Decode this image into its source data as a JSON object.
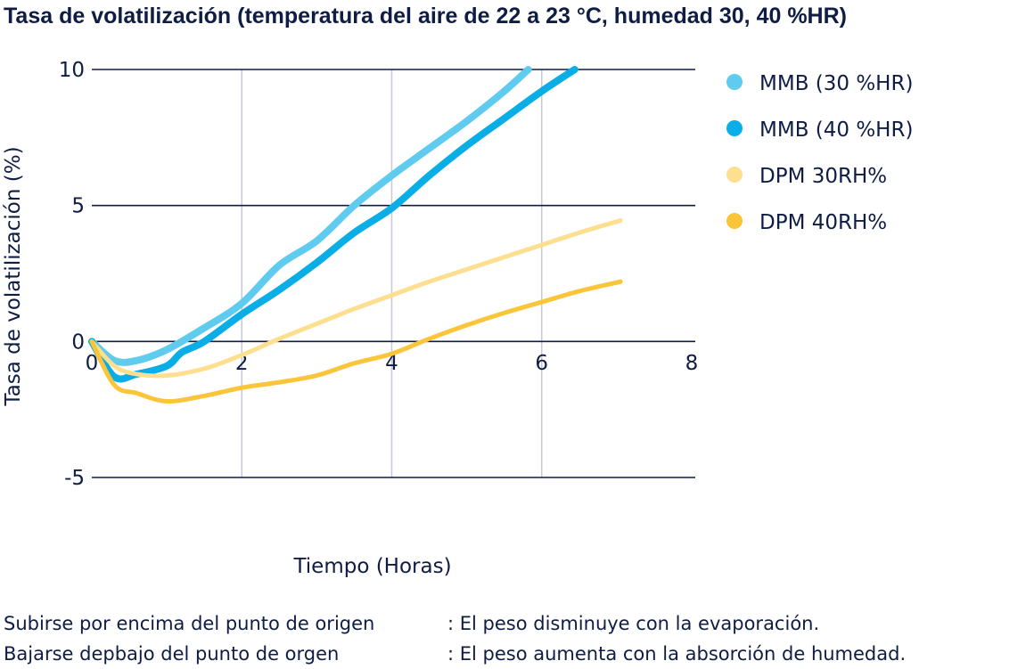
{
  "chart_data": {
    "type": "line",
    "title": "Tasa de volatilización (temperatura del aire de 22 a 23 °C, humedad 30, 40 %HR)",
    "xlabel": "Tiempo (Horas)",
    "ylabel": "Tasa de volatilización (%)",
    "xlim": [
      0,
      8
    ],
    "ylim": [
      -5,
      10
    ],
    "xticks": [
      "0",
      "2",
      "4",
      "6",
      "8"
    ],
    "yticks": [
      "10",
      "5",
      "0",
      "-5"
    ],
    "xtick_values": [
      0,
      2,
      4,
      6,
      8
    ],
    "ytick_values": [
      10,
      5,
      0,
      -5
    ],
    "grid": true,
    "legend_placement": "right",
    "series": [
      {
        "name": " MMB (30 %HR)",
        "color": "#5fcbef",
        "x": [
          0,
          0.3,
          0.6,
          1,
          1.5,
          2,
          2.5,
          3,
          3.5,
          4,
          4.5,
          5,
          5.5,
          5.82
        ],
        "y": [
          0,
          -0.7,
          -0.7,
          -0.3,
          0.5,
          1.4,
          2.8,
          3.7,
          5.0,
          6.1,
          7.1,
          8.1,
          9.2,
          10
        ]
      },
      {
        "name": "MMB (40 %HR)",
        "color": "#0aaee6",
        "x": [
          0,
          0.3,
          0.6,
          1,
          1.2,
          1.5,
          2,
          2.5,
          3,
          3.5,
          4,
          4.5,
          5,
          5.5,
          6,
          6.44
        ],
        "y": [
          0,
          -1.3,
          -1.2,
          -0.9,
          -0.4,
          0,
          1.0,
          1.9,
          2.9,
          4.0,
          4.9,
          6.1,
          7.2,
          8.2,
          9.2,
          10
        ]
      },
      {
        "name": "DPM 30RH%",
        "color": "#fddf8f",
        "x": [
          0,
          0.3,
          0.6,
          1,
          1.5,
          2,
          2.5,
          3,
          3.5,
          4,
          4.5,
          5,
          5.5,
          6,
          6.5,
          7.05
        ],
        "y": [
          0,
          -0.9,
          -1.2,
          -1.25,
          -1.0,
          -0.5,
          0.1,
          0.65,
          1.2,
          1.7,
          2.2,
          2.65,
          3.1,
          3.55,
          4.0,
          4.45
        ]
      },
      {
        "name": "DPM 40RH%",
        "color": "#fbc53a",
        "x": [
          0,
          0.3,
          0.6,
          1,
          1.5,
          2,
          2.5,
          3,
          3.5,
          4,
          4.5,
          5,
          5.5,
          6,
          6.5,
          7.05
        ],
        "y": [
          0,
          -1.6,
          -1.9,
          -2.2,
          -2.0,
          -1.7,
          -1.5,
          -1.25,
          -0.8,
          -0.45,
          0.1,
          0.6,
          1.05,
          1.45,
          1.85,
          2.2
        ]
      }
    ]
  },
  "notes": [
    {
      "label": "Subirse por encima del punto de origen",
      "text": ": El peso disminuye con la evaporación."
    },
    {
      "label": "Bajarse depbajo del punto de orgen",
      "text": ": El peso aumenta con la absorción de humedad."
    }
  ]
}
